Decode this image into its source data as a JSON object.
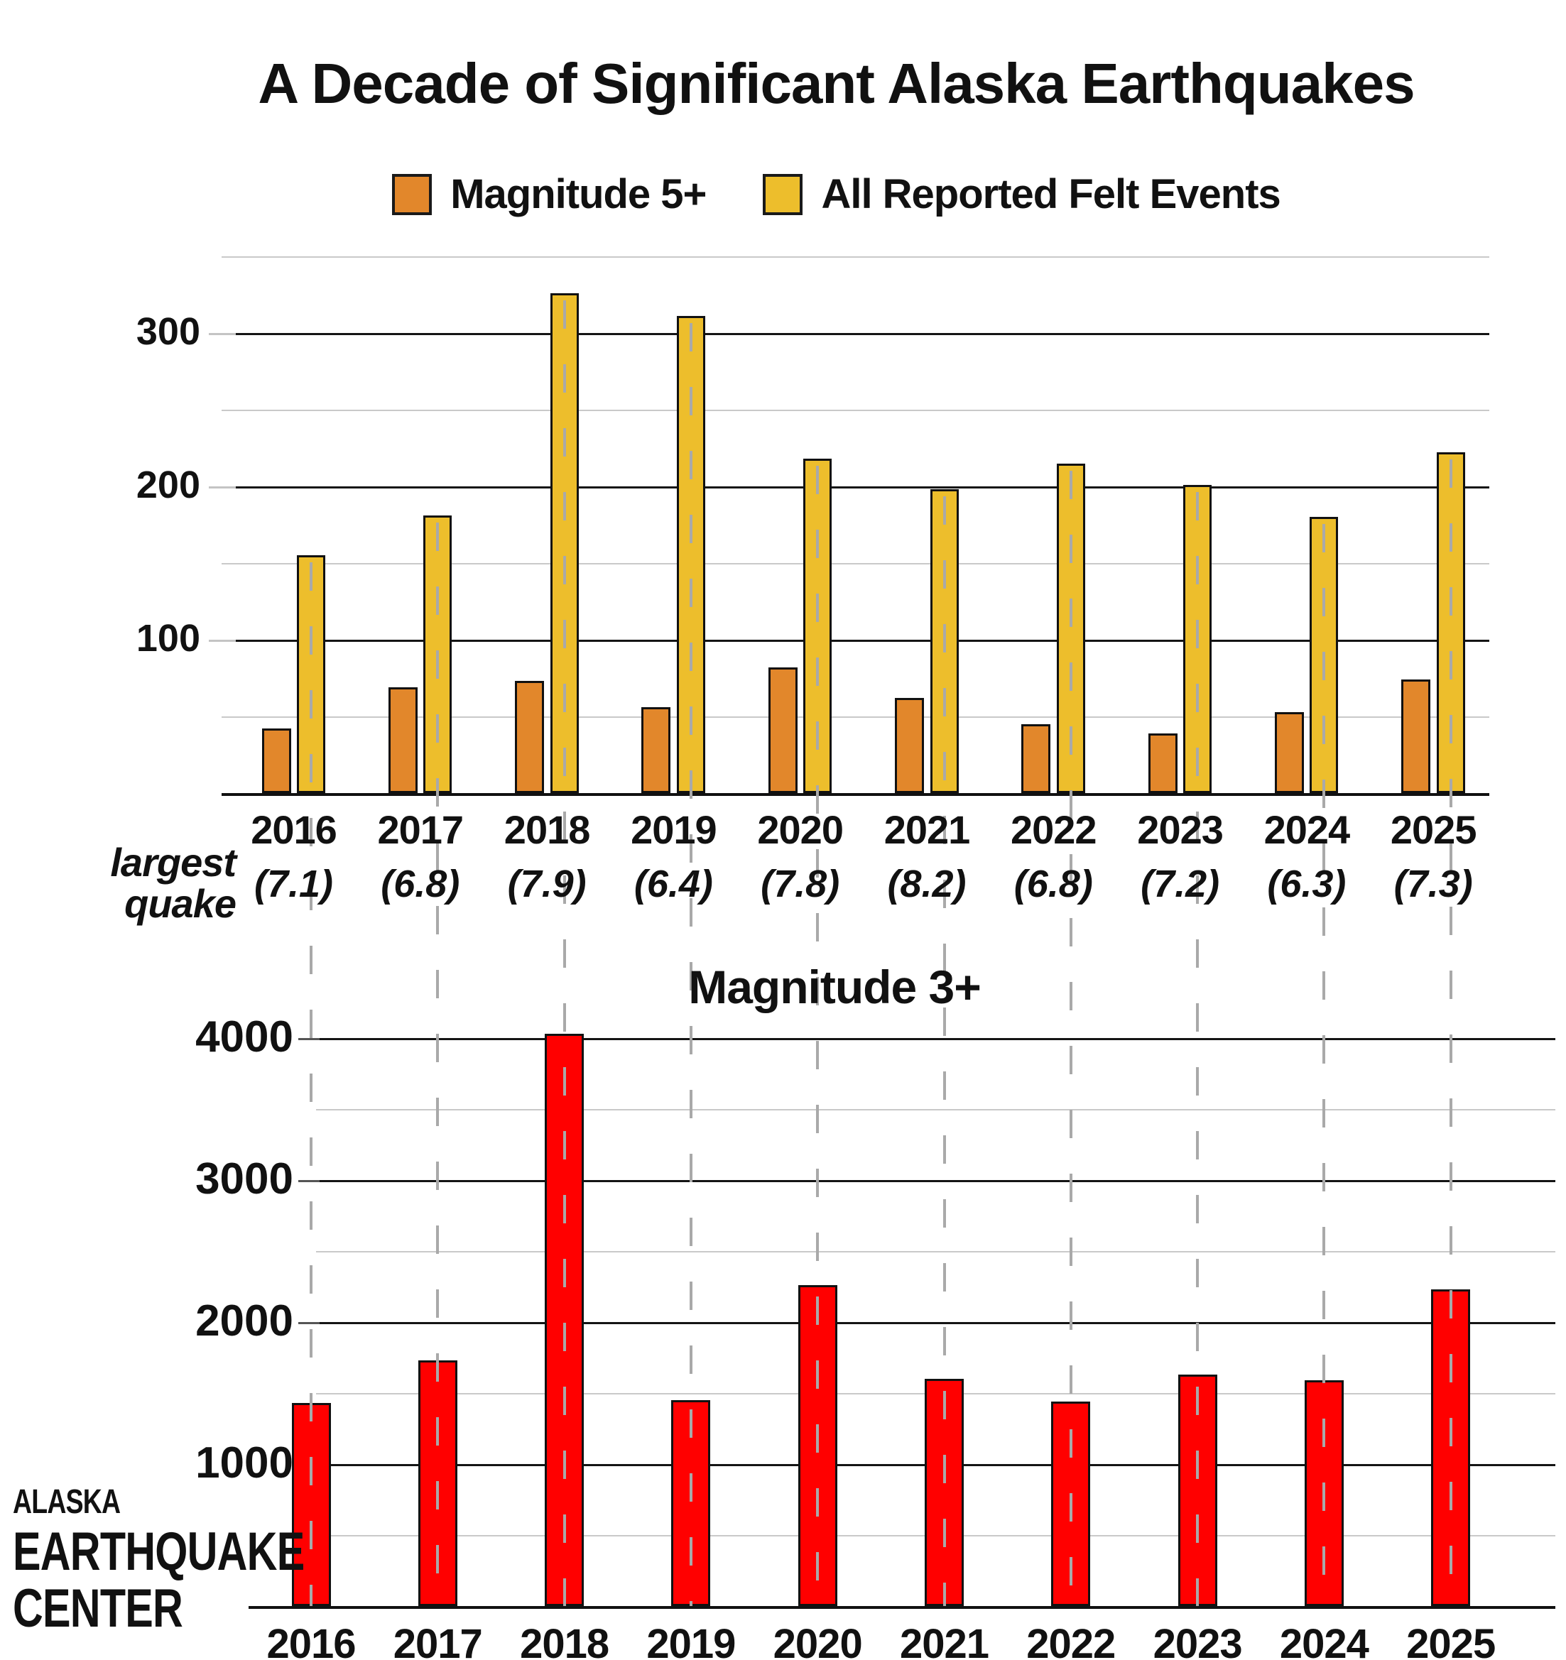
{
  "title": "A Decade of Significant Alaska Earthquakes",
  "legend": {
    "items": [
      {
        "label": "Magnitude 5+",
        "color": "#E2872B"
      },
      {
        "label": "All Reported Felt Events",
        "color": "#EDBE2C"
      }
    ]
  },
  "left_axis_note": {
    "line1": "largest",
    "line2": "quake"
  },
  "bottom_chart_title": "Magnitude 3+",
  "logo": {
    "line1": "ALASKA",
    "line2": "EARTHQUAKE",
    "line3": "CENTER"
  },
  "years": [
    "2016",
    "2017",
    "2018",
    "2019",
    "2020",
    "2021",
    "2022",
    "2023",
    "2024",
    "2025"
  ],
  "largest_quake_labels": [
    "(7.1)",
    "(6.8)",
    "(7.9)",
    "(6.4)",
    "(7.8)",
    "(8.2)",
    "(6.8)",
    "(7.2)",
    "(6.3)",
    "(7.3)"
  ],
  "colors": {
    "magnitude5_bar": "#E2872B",
    "felt_events_bar": "#EDBE2C",
    "magnitude3_bar": "#FF0000",
    "bar_outline": "#111111",
    "grid_major": "#141414",
    "grid_minor": "#c9c9c9",
    "dashed_line": "#a9a9a9"
  },
  "chart_data": [
    {
      "type": "bar",
      "title": "",
      "categories": [
        "2016",
        "2017",
        "2018",
        "2019",
        "2020",
        "2021",
        "2022",
        "2023",
        "2024",
        "2025"
      ],
      "series": [
        {
          "name": "Magnitude 5+",
          "color": "#E2872B",
          "values": [
            42,
            69,
            73,
            56,
            82,
            62,
            45,
            39,
            53,
            74
          ]
        },
        {
          "name": "All Reported Felt Events",
          "color": "#EDBE2C",
          "values": [
            155,
            181,
            326,
            311,
            218,
            198,
            215,
            201,
            180,
            222
          ]
        }
      ],
      "xlabel": "",
      "ylabel": "",
      "ylim": [
        0,
        350
      ],
      "yticks_major": [
        100,
        200,
        300
      ],
      "yticks_minor": [
        50,
        150,
        250,
        350
      ],
      "grid": true,
      "legend_position": "top",
      "annotation_row": {
        "label": "largest quake",
        "values": [
          7.1,
          6.8,
          7.9,
          6.4,
          7.8,
          8.2,
          6.8,
          7.2,
          6.3,
          7.3
        ]
      }
    },
    {
      "type": "bar",
      "title": "Magnitude 3+",
      "categories": [
        "2016",
        "2017",
        "2018",
        "2019",
        "2020",
        "2021",
        "2022",
        "2023",
        "2024",
        "2025"
      ],
      "series": [
        {
          "name": "Magnitude 3+",
          "color": "#FF0000",
          "values": [
            1430,
            1730,
            4030,
            1450,
            2260,
            1600,
            1440,
            1630,
            1590,
            2230
          ]
        }
      ],
      "xlabel": "",
      "ylabel": "",
      "ylim": [
        0,
        4150
      ],
      "yticks_major": [
        1000,
        2000,
        3000,
        4000
      ],
      "yticks_minor": [
        500,
        1500,
        2500,
        3500
      ],
      "grid": true,
      "legend_position": "none"
    }
  ]
}
